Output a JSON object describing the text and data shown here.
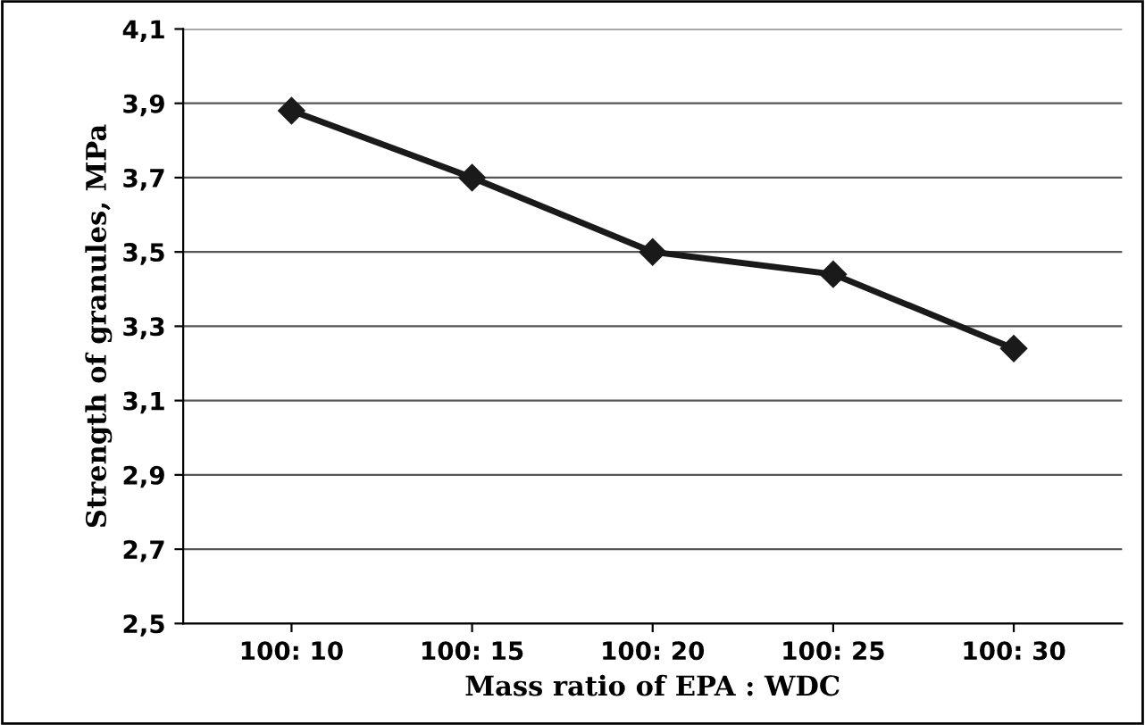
{
  "chart_data": {
    "type": "line",
    "xlabel": "Mass ratio of EPA : WDC",
    "ylabel": "Strength of granules, MPa",
    "categories": [
      "100: 10",
      "100: 15",
      "100: 20",
      "100: 25",
      "100: 30"
    ],
    "series": [
      {
        "color": "#1a1a1a",
        "values": [
          3.88,
          3.7,
          3.5,
          3.44,
          3.24
        ]
      }
    ],
    "ylim": [
      2.5,
      4.1
    ],
    "yticks": [
      {
        "value": 2.5,
        "label": "2,5"
      },
      {
        "value": 2.7,
        "label": "2,7"
      },
      {
        "value": 2.9,
        "label": "2,9"
      },
      {
        "value": 3.1,
        "label": "3,1"
      },
      {
        "value": 3.3,
        "label": "3,3"
      },
      {
        "value": 3.5,
        "label": "3,5"
      },
      {
        "value": 3.7,
        "label": "3,7"
      },
      {
        "value": 3.9,
        "label": "3,9"
      },
      {
        "value": 4.1,
        "label": "4,1"
      }
    ],
    "grid": "y",
    "marker": "diamond",
    "line_style": "solid",
    "legend": false
  }
}
